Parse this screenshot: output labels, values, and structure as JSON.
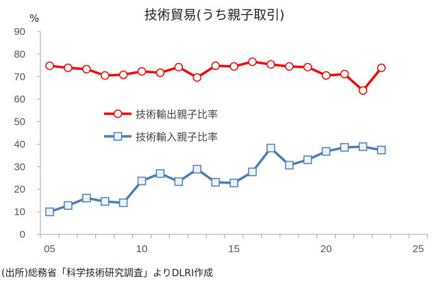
{
  "chart_data": {
    "type": "line",
    "title": "技術貿易(うち親子取引)",
    "ylabel": "%",
    "xlabel": "",
    "ylim": [
      0,
      90
    ],
    "yticks": [
      "0",
      "10",
      "20",
      "30",
      "40",
      "50",
      "60",
      "70",
      "80",
      "90"
    ],
    "xlim": [
      4.5,
      25.5
    ],
    "xticks": [
      "05",
      "10",
      "15",
      "20",
      "25"
    ],
    "x": [
      5,
      6,
      7,
      8,
      9,
      10,
      11,
      12,
      13,
      14,
      15,
      16,
      17,
      18,
      19,
      20,
      21,
      22,
      23
    ],
    "series": [
      {
        "name": "技術輸出親子比率",
        "color": "#ff0000",
        "marker": "circle",
        "values": [
          74.8,
          73.9,
          73.3,
          70.5,
          70.8,
          72.3,
          71.7,
          74.2,
          69.6,
          74.8,
          74.5,
          76.6,
          75.4,
          74.5,
          74.2,
          70.5,
          71.1,
          63.8,
          73.9
        ]
      },
      {
        "name": "技術輸入親子比率",
        "color": "#4a7ebb",
        "marker": "square",
        "values": [
          10.0,
          12.8,
          16.1,
          14.6,
          14.0,
          23.7,
          27.0,
          23.4,
          28.9,
          23.1,
          22.8,
          27.7,
          38.3,
          30.7,
          33.1,
          36.8,
          38.6,
          38.9,
          37.4
        ]
      }
    ],
    "grid": false,
    "legend_position": "center-left"
  },
  "source": "(出所)総務省「科学技術研究調査」よりDLRI作成"
}
